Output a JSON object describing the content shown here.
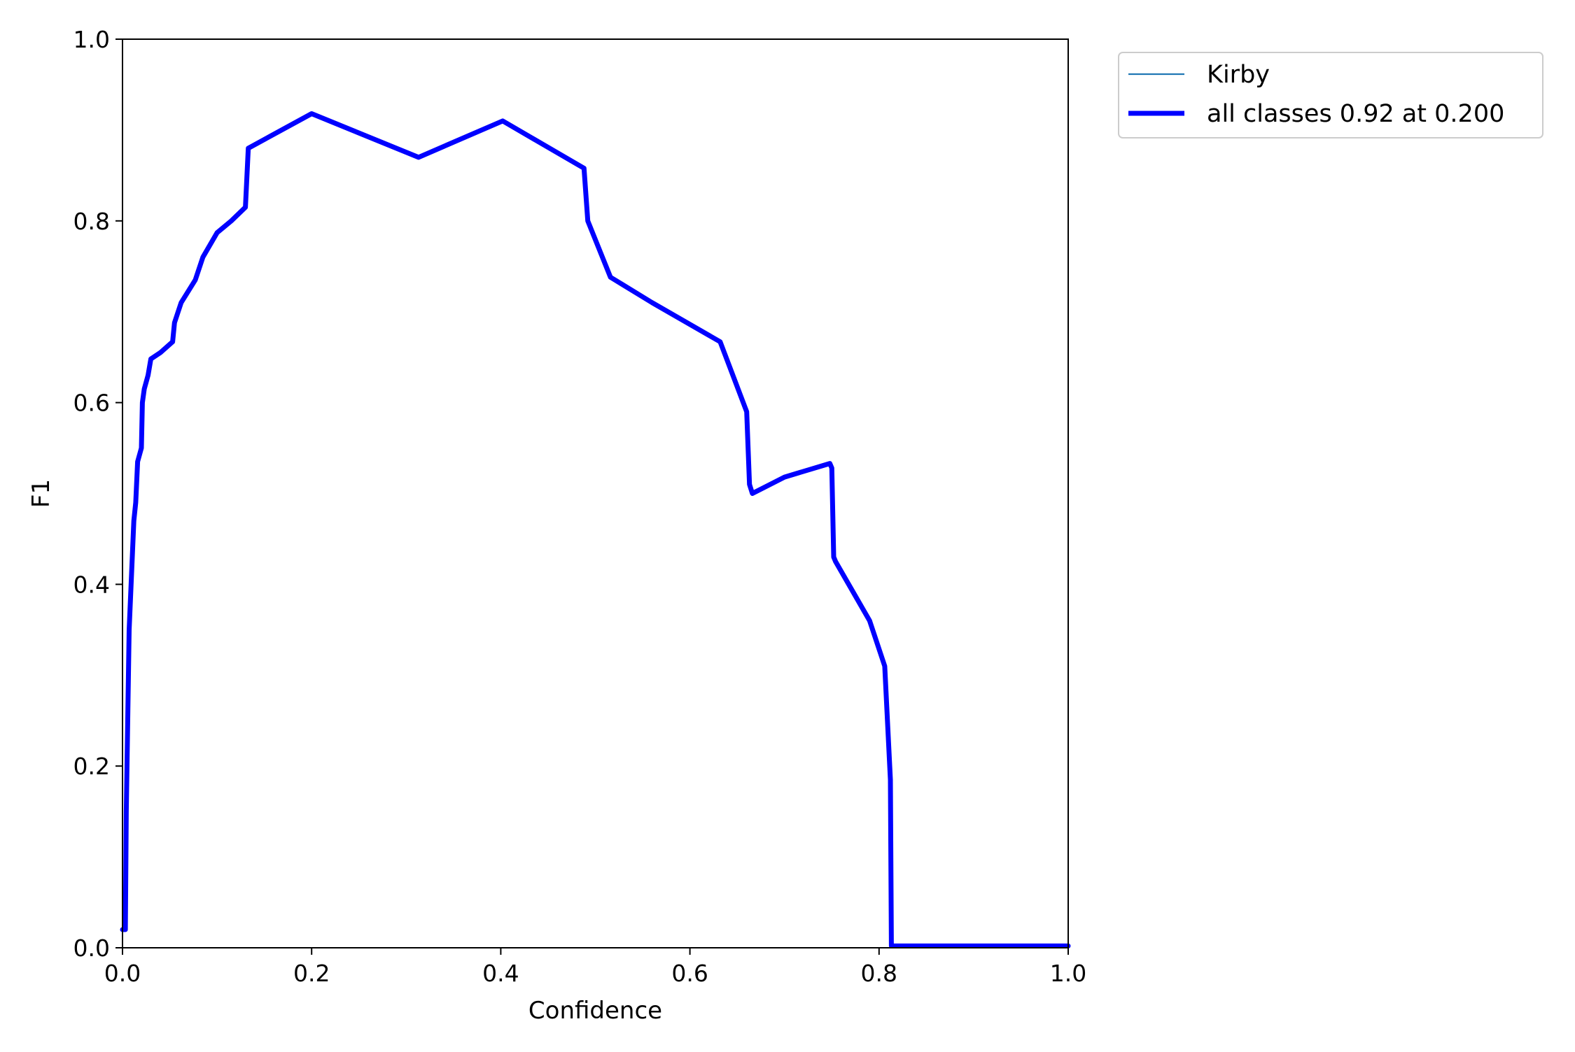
{
  "chart_data": {
    "type": "line",
    "title": "",
    "xlabel": "Confidence",
    "ylabel": "F1",
    "xlim": [
      0.0,
      1.0
    ],
    "ylim": [
      0.0,
      1.0
    ],
    "x_ticks": [
      "0.0",
      "0.2",
      "0.4",
      "0.6",
      "0.8",
      "1.0"
    ],
    "y_ticks": [
      "0.0",
      "0.2",
      "0.4",
      "0.6",
      "0.8",
      "1.0"
    ],
    "grid": false,
    "legend_position": "outside-top-right",
    "series": [
      {
        "name": "Kirby",
        "color": "#1f77b4",
        "line_width": "thin",
        "points": [
          [
            0.0,
            0.02
          ],
          [
            0.003,
            0.02
          ],
          [
            0.004,
            0.15
          ],
          [
            0.007,
            0.35
          ],
          [
            0.012,
            0.47
          ],
          [
            0.014,
            0.49
          ],
          [
            0.016,
            0.535
          ],
          [
            0.02,
            0.55
          ],
          [
            0.021,
            0.6
          ],
          [
            0.023,
            0.615
          ],
          [
            0.027,
            0.63
          ],
          [
            0.03,
            0.648
          ],
          [
            0.04,
            0.655
          ],
          [
            0.053,
            0.667
          ],
          [
            0.055,
            0.688
          ],
          [
            0.062,
            0.71
          ],
          [
            0.077,
            0.735
          ],
          [
            0.085,
            0.76
          ],
          [
            0.1,
            0.787
          ],
          [
            0.115,
            0.8
          ],
          [
            0.13,
            0.815
          ],
          [
            0.133,
            0.88
          ],
          [
            0.2,
            0.918
          ],
          [
            0.313,
            0.87
          ],
          [
            0.402,
            0.91
          ],
          [
            0.488,
            0.858
          ],
          [
            0.492,
            0.8
          ],
          [
            0.516,
            0.738
          ],
          [
            0.56,
            0.71
          ],
          [
            0.632,
            0.667
          ],
          [
            0.66,
            0.59
          ],
          [
            0.663,
            0.51
          ],
          [
            0.666,
            0.5
          ],
          [
            0.7,
            0.518
          ],
          [
            0.748,
            0.533
          ],
          [
            0.75,
            0.528
          ],
          [
            0.752,
            0.43
          ],
          [
            0.754,
            0.425
          ],
          [
            0.79,
            0.36
          ],
          [
            0.806,
            0.31
          ],
          [
            0.812,
            0.185
          ],
          [
            0.813,
            0.002
          ],
          [
            1.0,
            0.002
          ]
        ]
      },
      {
        "name": "all classes 0.92 at 0.200",
        "color": "#0000ff",
        "line_width": "thick",
        "points": [
          [
            0.0,
            0.02
          ],
          [
            0.003,
            0.02
          ],
          [
            0.004,
            0.15
          ],
          [
            0.007,
            0.35
          ],
          [
            0.012,
            0.47
          ],
          [
            0.014,
            0.49
          ],
          [
            0.016,
            0.535
          ],
          [
            0.02,
            0.55
          ],
          [
            0.021,
            0.6
          ],
          [
            0.023,
            0.615
          ],
          [
            0.027,
            0.63
          ],
          [
            0.03,
            0.648
          ],
          [
            0.04,
            0.655
          ],
          [
            0.053,
            0.667
          ],
          [
            0.055,
            0.688
          ],
          [
            0.062,
            0.71
          ],
          [
            0.077,
            0.735
          ],
          [
            0.085,
            0.76
          ],
          [
            0.1,
            0.787
          ],
          [
            0.115,
            0.8
          ],
          [
            0.13,
            0.815
          ],
          [
            0.133,
            0.88
          ],
          [
            0.2,
            0.918
          ],
          [
            0.313,
            0.87
          ],
          [
            0.402,
            0.91
          ],
          [
            0.488,
            0.858
          ],
          [
            0.492,
            0.8
          ],
          [
            0.516,
            0.738
          ],
          [
            0.56,
            0.71
          ],
          [
            0.632,
            0.667
          ],
          [
            0.66,
            0.59
          ],
          [
            0.663,
            0.51
          ],
          [
            0.666,
            0.5
          ],
          [
            0.7,
            0.518
          ],
          [
            0.748,
            0.533
          ],
          [
            0.75,
            0.528
          ],
          [
            0.752,
            0.43
          ],
          [
            0.754,
            0.425
          ],
          [
            0.79,
            0.36
          ],
          [
            0.806,
            0.31
          ],
          [
            0.812,
            0.185
          ],
          [
            0.813,
            0.002
          ],
          [
            1.0,
            0.002
          ]
        ]
      }
    ]
  }
}
